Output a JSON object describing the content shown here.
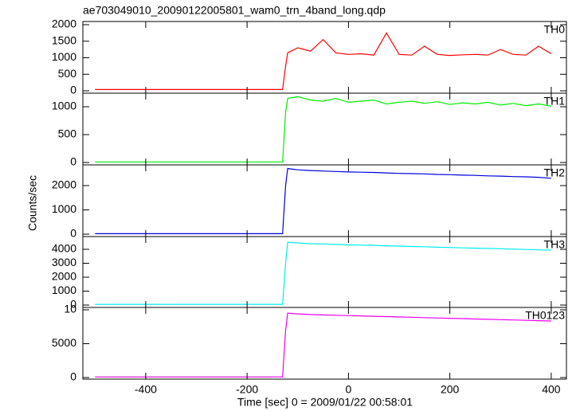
{
  "title": "ae703049010_20090122005801_wam0_trn_4band_long.qdp",
  "ylabel": "Counts/sec",
  "xlabel": "Time [sec] 0 = 2009/01/22 00:58:01",
  "chart_data": [
    {
      "type": "line",
      "xlim": [
        -524,
        430
      ],
      "ylim": [
        -72,
        2096
      ],
      "yticks": [
        0,
        500,
        1000,
        1500,
        2000
      ],
      "x": [
        -500,
        -450,
        -400,
        -350,
        -300,
        -250,
        -200,
        -150,
        -130,
        -124,
        -120,
        -100,
        -75,
        -50,
        -25,
        0,
        25,
        50,
        75,
        100,
        125,
        150,
        175,
        200,
        225,
        250,
        275,
        300,
        325,
        350,
        375,
        400
      ],
      "series": [
        {
          "name": "TH0",
          "color": "#ff0000",
          "values": [
            40,
            40,
            40,
            40,
            40,
            40,
            40,
            40,
            40,
            750,
            1150,
            1300,
            1200,
            1550,
            1150,
            1100,
            1120,
            1080,
            1750,
            1100,
            1080,
            1350,
            1100,
            1070,
            1090,
            1100,
            1080,
            1250,
            1100,
            1080,
            1350,
            1120
          ]
        }
      ]
    },
    {
      "type": "line",
      "xlim": [
        -524,
        430
      ],
      "ylim": [
        -43,
        1243
      ],
      "yticks": [
        0,
        500,
        1000
      ],
      "x": [
        -500,
        -450,
        -400,
        -350,
        -300,
        -250,
        -200,
        -150,
        -130,
        -124,
        -120,
        -100,
        -75,
        -50,
        -25,
        0,
        25,
        50,
        75,
        100,
        125,
        150,
        175,
        200,
        225,
        250,
        275,
        300,
        325,
        350,
        375,
        400
      ],
      "series": [
        {
          "name": "TH1",
          "color": "#00ee00",
          "values": [
            10,
            10,
            10,
            10,
            10,
            10,
            10,
            10,
            10,
            900,
            1150,
            1180,
            1120,
            1100,
            1150,
            1080,
            1100,
            1120,
            1050,
            1080,
            1100,
            1060,
            1090,
            1040,
            1070,
            1050,
            1080,
            1030,
            1060,
            1020,
            1050,
            1010
          ]
        }
      ]
    },
    {
      "type": "line",
      "xlim": [
        -524,
        430
      ],
      "ylim": [
        -98,
        2852
      ],
      "yticks": [
        0,
        1000,
        2000
      ],
      "x": [
        -500,
        -450,
        -400,
        -350,
        -300,
        -250,
        -200,
        -150,
        -130,
        -124,
        -120,
        -100,
        -75,
        -50,
        -25,
        0,
        25,
        50,
        75,
        100,
        125,
        150,
        175,
        200,
        225,
        250,
        275,
        300,
        325,
        350,
        375,
        400
      ],
      "series": [
        {
          "name": "TH2",
          "color": "#0000dd",
          "values": [
            20,
            20,
            20,
            20,
            20,
            20,
            20,
            20,
            20,
            2000,
            2700,
            2650,
            2620,
            2600,
            2580,
            2560,
            2550,
            2540,
            2520,
            2500,
            2490,
            2480,
            2460,
            2450,
            2430,
            2420,
            2400,
            2390,
            2370,
            2360,
            2340,
            2300
          ]
        }
      ]
    },
    {
      "type": "line",
      "xlim": [
        -524,
        430
      ],
      "ylim": [
        -171,
        4914
      ],
      "yticks": [
        0,
        1000,
        2000,
        3000,
        4000
      ],
      "x": [
        -500,
        -450,
        -400,
        -350,
        -300,
        -250,
        -200,
        -150,
        -130,
        -124,
        -120,
        -100,
        -75,
        -50,
        -25,
        0,
        25,
        50,
        75,
        100,
        125,
        150,
        175,
        200,
        225,
        250,
        275,
        300,
        325,
        350,
        375,
        400
      ],
      "series": [
        {
          "name": "TH3",
          "color": "#00eeee",
          "values": [
            50,
            50,
            50,
            50,
            50,
            50,
            50,
            50,
            50,
            3000,
            4500,
            4450,
            4400,
            4380,
            4350,
            4320,
            4300,
            4280,
            4250,
            4230,
            4200,
            4180,
            4150,
            4130,
            4100,
            4080,
            4060,
            4040,
            4010,
            3990,
            3960,
            3940
          ]
        }
      ]
    },
    {
      "type": "line",
      "xlim": [
        -524,
        430
      ],
      "ylim": [
        -235,
        10350
      ],
      "yticks": [
        0,
        5000,
        {
          "value": 10000,
          "label": "10"
        }
      ],
      "xticks": [
        -400,
        -200,
        0,
        200,
        400
      ],
      "x": [
        -500,
        -450,
        -400,
        -350,
        -300,
        -250,
        -200,
        -150,
        -130,
        -124,
        -120,
        -100,
        -75,
        -50,
        -25,
        0,
        25,
        50,
        75,
        100,
        125,
        150,
        175,
        200,
        225,
        250,
        275,
        300,
        325,
        350,
        375,
        400
      ],
      "series": [
        {
          "name": "TH0123",
          "color": "#ee00ee",
          "values": [
            100,
            100,
            100,
            100,
            100,
            100,
            100,
            100,
            100,
            7000,
            9500,
            9400,
            9300,
            9250,
            9200,
            9150,
            9100,
            9050,
            9000,
            8950,
            8900,
            8850,
            8800,
            8750,
            8700,
            8650,
            8600,
            8550,
            8500,
            8450,
            8400,
            8350
          ]
        }
      ]
    }
  ]
}
